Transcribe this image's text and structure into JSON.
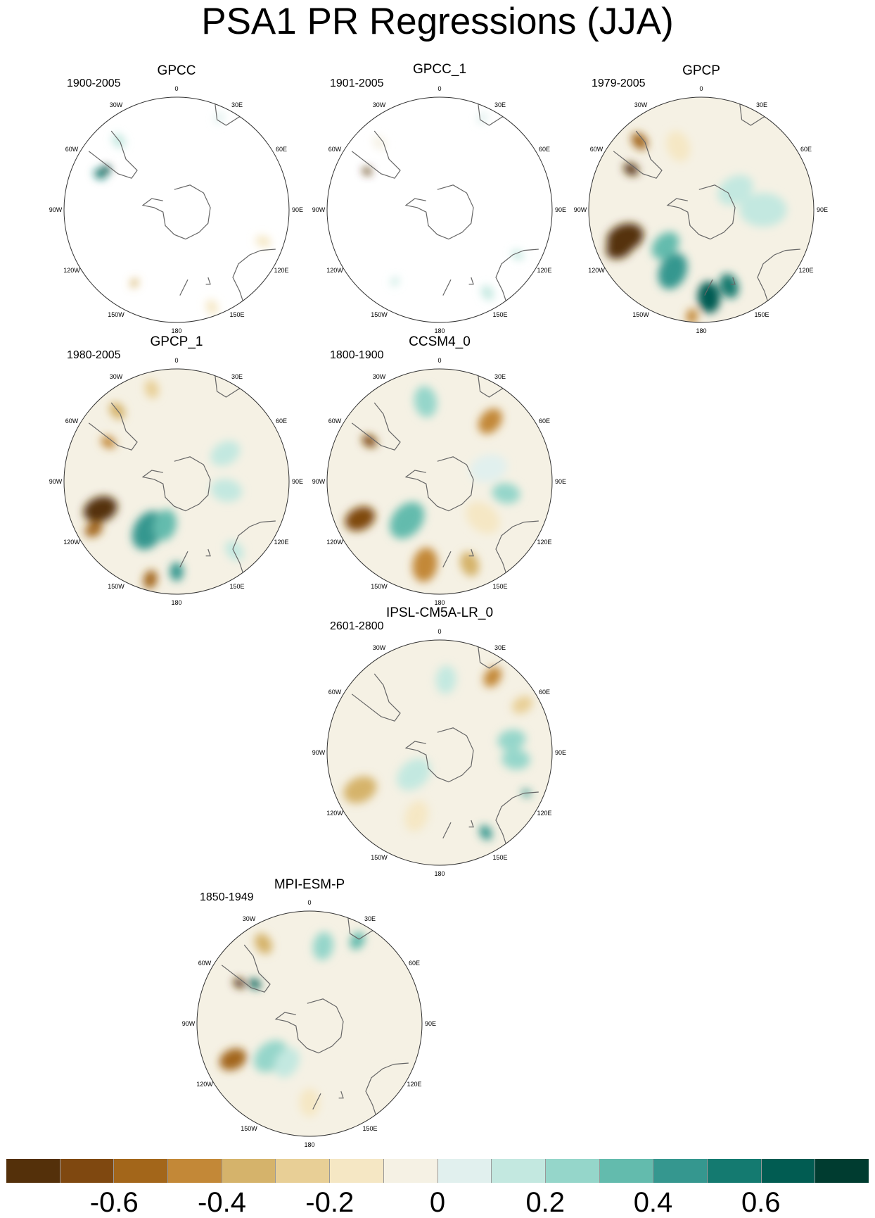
{
  "title": "PSA1 PR Regressions (JJA)",
  "colors": {
    "scale": [
      "#54300a",
      "#7f4810",
      "#a3661a",
      "#c38837",
      "#d5b36b",
      "#e8cf96",
      "#f5e7c4",
      "#f5f1e4",
      "#e1f0ee",
      "#c3e8e0",
      "#95d6ca",
      "#63bbad",
      "#35978f",
      "#147a70",
      "#015c52",
      "#003c30"
    ],
    "coast": "#666666",
    "border": "#333333"
  },
  "lon_labels": [
    "0",
    "30E",
    "60E",
    "90E",
    "120E",
    "150E",
    "180",
    "150W",
    "120W",
    "90W",
    "60W",
    "30W"
  ],
  "panels": [
    {
      "title": "GPCC",
      "period": "1900-2005",
      "mode": "land",
      "blobs": [
        {
          "lon": 160,
          "r": 0.92,
          "s": 0.05,
          "c": 6
        },
        {
          "lon": 110,
          "r": 0.82,
          "s": 0.05,
          "c": 6
        },
        {
          "lon": 210,
          "r": 0.75,
          "s": 0.03,
          "c": 4
        },
        {
          "lon": 295,
          "r": 0.75,
          "s": 0.04,
          "c": 13
        },
        {
          "lon": 300,
          "r": 0.72,
          "s": 0.03,
          "c": 15
        },
        {
          "lon": 320,
          "r": 0.8,
          "s": 0.05,
          "c": 9
        },
        {
          "lon": 25,
          "r": 0.9,
          "s": 0.04,
          "c": 8
        }
      ]
    },
    {
      "title": "GPCC_1",
      "period": "1901-2005",
      "mode": "land",
      "blobs": [
        {
          "lon": 150,
          "r": 0.85,
          "s": 0.05,
          "c": 9
        },
        {
          "lon": 120,
          "r": 0.8,
          "s": 0.04,
          "c": 9
        },
        {
          "lon": 212,
          "r": 0.75,
          "s": 0.03,
          "c": 9
        },
        {
          "lon": 298,
          "r": 0.73,
          "s": 0.03,
          "c": 0
        },
        {
          "lon": 318,
          "r": 0.8,
          "s": 0.05,
          "c": 7
        },
        {
          "lon": 25,
          "r": 0.9,
          "s": 0.04,
          "c": 8
        }
      ]
    },
    {
      "title": "GPCP",
      "period": "1979-2005",
      "mode": "full",
      "blobs": [
        {
          "lon": 250,
          "r": 0.72,
          "s": 0.12,
          "c": 0
        },
        {
          "lon": 245,
          "r": 0.8,
          "s": 0.09,
          "c": 0
        },
        {
          "lon": 300,
          "r": 0.72,
          "s": 0.05,
          "c": 0
        },
        {
          "lon": 318,
          "r": 0.82,
          "s": 0.06,
          "c": 2
        },
        {
          "lon": 175,
          "r": 0.78,
          "s": 0.1,
          "c": 14
        },
        {
          "lon": 160,
          "r": 0.72,
          "s": 0.08,
          "c": 13
        },
        {
          "lon": 205,
          "r": 0.6,
          "s": 0.12,
          "c": 12
        },
        {
          "lon": 225,
          "r": 0.45,
          "s": 0.1,
          "c": 11
        },
        {
          "lon": 185,
          "r": 0.95,
          "s": 0.05,
          "c": 3
        },
        {
          "lon": 90,
          "r": 0.55,
          "s": 0.15,
          "c": 9
        },
        {
          "lon": 60,
          "r": 0.35,
          "s": 0.12,
          "c": 9
        },
        {
          "lon": 340,
          "r": 0.6,
          "s": 0.1,
          "c": 6
        }
      ]
    },
    {
      "title": "GPCP_1",
      "period": "1980-2005",
      "mode": "full",
      "blobs": [
        {
          "lon": 250,
          "r": 0.72,
          "s": 0.11,
          "c": 0
        },
        {
          "lon": 240,
          "r": 0.85,
          "s": 0.06,
          "c": 2
        },
        {
          "lon": 210,
          "r": 0.5,
          "s": 0.13,
          "c": 12
        },
        {
          "lon": 195,
          "r": 0.4,
          "s": 0.1,
          "c": 11
        },
        {
          "lon": 180,
          "r": 0.8,
          "s": 0.06,
          "c": 12
        },
        {
          "lon": 195,
          "r": 0.9,
          "s": 0.06,
          "c": 2
        },
        {
          "lon": 320,
          "r": 0.82,
          "s": 0.06,
          "c": 4
        },
        {
          "lon": 345,
          "r": 0.85,
          "s": 0.06,
          "c": 5
        },
        {
          "lon": 100,
          "r": 0.45,
          "s": 0.1,
          "c": 9
        },
        {
          "lon": 60,
          "r": 0.5,
          "s": 0.1,
          "c": 9
        },
        {
          "lon": 140,
          "r": 0.8,
          "s": 0.07,
          "c": 9
        },
        {
          "lon": 300,
          "r": 0.7,
          "s": 0.05,
          "c": 3
        }
      ]
    },
    {
      "title": "CCSM4_0",
      "period": "1800-1900",
      "mode": "full",
      "blobs": [
        {
          "lon": 245,
          "r": 0.78,
          "s": 0.1,
          "c": 1
        },
        {
          "lon": 190,
          "r": 0.75,
          "s": 0.11,
          "c": 3
        },
        {
          "lon": 160,
          "r": 0.78,
          "s": 0.08,
          "c": 4
        },
        {
          "lon": 40,
          "r": 0.7,
          "s": 0.09,
          "c": 3
        },
        {
          "lon": 300,
          "r": 0.72,
          "s": 0.05,
          "c": 1
        },
        {
          "lon": 220,
          "r": 0.45,
          "s": 0.13,
          "c": 11
        },
        {
          "lon": 350,
          "r": 0.72,
          "s": 0.1,
          "c": 10
        },
        {
          "lon": 100,
          "r": 0.6,
          "s": 0.09,
          "c": 10
        },
        {
          "lon": 75,
          "r": 0.45,
          "s": 0.12,
          "c": 8
        },
        {
          "lon": 130,
          "r": 0.5,
          "s": 0.12,
          "c": 6
        }
      ]
    },
    {
      "title": "IPSL-CM5A-LR_0",
      "period": "2601-2800",
      "mode": "full",
      "blobs": [
        {
          "lon": 245,
          "r": 0.78,
          "s": 0.11,
          "c": 4
        },
        {
          "lon": 35,
          "r": 0.82,
          "s": 0.07,
          "c": 3
        },
        {
          "lon": 60,
          "r": 0.85,
          "s": 0.07,
          "c": 5
        },
        {
          "lon": 80,
          "r": 0.65,
          "s": 0.09,
          "c": 10
        },
        {
          "lon": 95,
          "r": 0.68,
          "s": 0.09,
          "c": 10
        },
        {
          "lon": 150,
          "r": 0.82,
          "s": 0.05,
          "c": 12
        },
        {
          "lon": 115,
          "r": 0.85,
          "s": 0.03,
          "c": 12
        },
        {
          "lon": 5,
          "r": 0.65,
          "s": 0.09,
          "c": 9
        },
        {
          "lon": 200,
          "r": 0.6,
          "s": 0.1,
          "c": 6
        },
        {
          "lon": 230,
          "r": 0.3,
          "s": 0.12,
          "c": 9
        }
      ]
    },
    {
      "title": "MPI-ESM-P",
      "period": "1850-1949",
      "mode": "full",
      "blobs": [
        {
          "lon": 245,
          "r": 0.75,
          "s": 0.09,
          "c": 2
        },
        {
          "lon": 300,
          "r": 0.72,
          "s": 0.04,
          "c": 0
        },
        {
          "lon": 306,
          "r": 0.6,
          "s": 0.04,
          "c": 14
        },
        {
          "lon": 10,
          "r": 0.7,
          "s": 0.09,
          "c": 10
        },
        {
          "lon": 30,
          "r": 0.85,
          "s": 0.06,
          "c": 11
        },
        {
          "lon": 230,
          "r": 0.45,
          "s": 0.12,
          "c": 10
        },
        {
          "lon": 210,
          "r": 0.4,
          "s": 0.1,
          "c": 9
        },
        {
          "lon": 330,
          "r": 0.82,
          "s": 0.07,
          "c": 4
        },
        {
          "lon": 120,
          "r": 0.6,
          "s": 0.12,
          "c": 7
        },
        {
          "lon": 180,
          "r": 0.7,
          "s": 0.09,
          "c": 6
        }
      ]
    }
  ],
  "colorbar": {
    "tick_labels": [
      "-0.6",
      "-0.4",
      "-0.2",
      "0",
      "0.2",
      "0.4",
      "0.6"
    ]
  }
}
